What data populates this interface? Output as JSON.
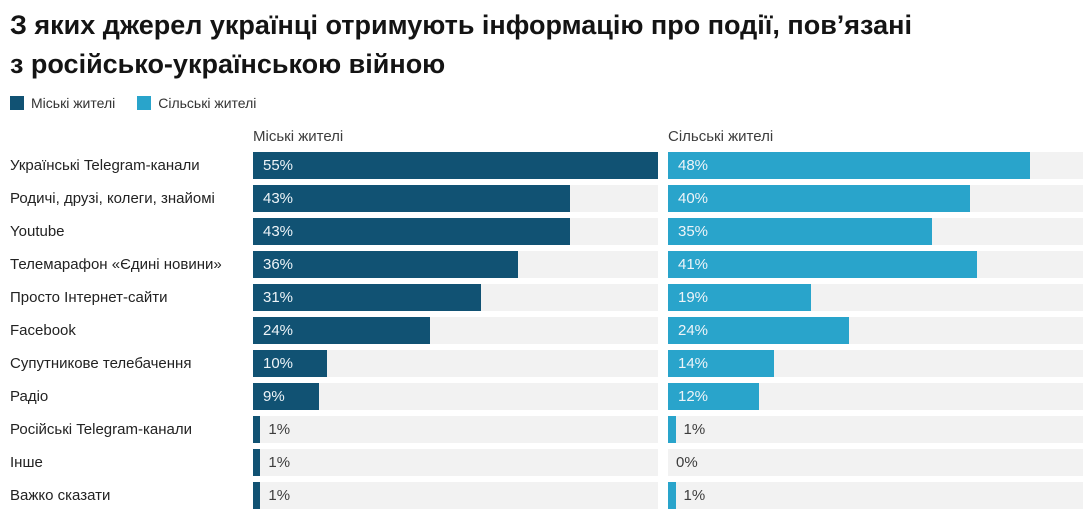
{
  "title": {
    "lines": [
      "З яких джерел українці отримують інформацію про події, пов’язані",
      "з російсько-українською війною"
    ]
  },
  "legend": [
    {
      "label": "Міські жителі",
      "color": "#115273"
    },
    {
      "label": "Сільські жителі",
      "color": "#29a4cb"
    }
  ],
  "column_headers": [
    "Міські жителі",
    "Сільські жителі"
  ],
  "colors": {
    "urban_bar": "#115273",
    "rural_bar": "#29a4cb",
    "track": "#f2f2f2",
    "inside_label": "#eef4f8",
    "outside_label": "#3d3d3d"
  },
  "chart_data": {
    "type": "bar",
    "orientation": "horizontal",
    "title": "З яких джерел українці отримують інформацію про події, пов’язані з російсько-українською війною",
    "categories": [
      "Українські Telegram-канали",
      "Родичі, друзі, колеги, знайомі",
      "Youtube",
      "Телемарафон «Єдині новини»",
      "Просто Інтернет-сайти",
      "Facebook",
      "Супутникове телебачення",
      "Радіо",
      "Російські Telegram-канали",
      "Інше",
      "Важко сказати"
    ],
    "series": [
      {
        "name": "Міські жителі",
        "color": "#115273",
        "values": [
          55,
          43,
          43,
          36,
          31,
          24,
          10,
          9,
          1,
          1,
          1
        ]
      },
      {
        "name": "Сільські жителі",
        "color": "#29a4cb",
        "values": [
          48,
          40,
          35,
          41,
          19,
          24,
          14,
          12,
          1,
          0,
          1
        ]
      }
    ],
    "xlim": [
      0,
      55
    ],
    "value_suffix": "%",
    "value_labels": true,
    "grid": false,
    "legend_position": "top-left"
  }
}
